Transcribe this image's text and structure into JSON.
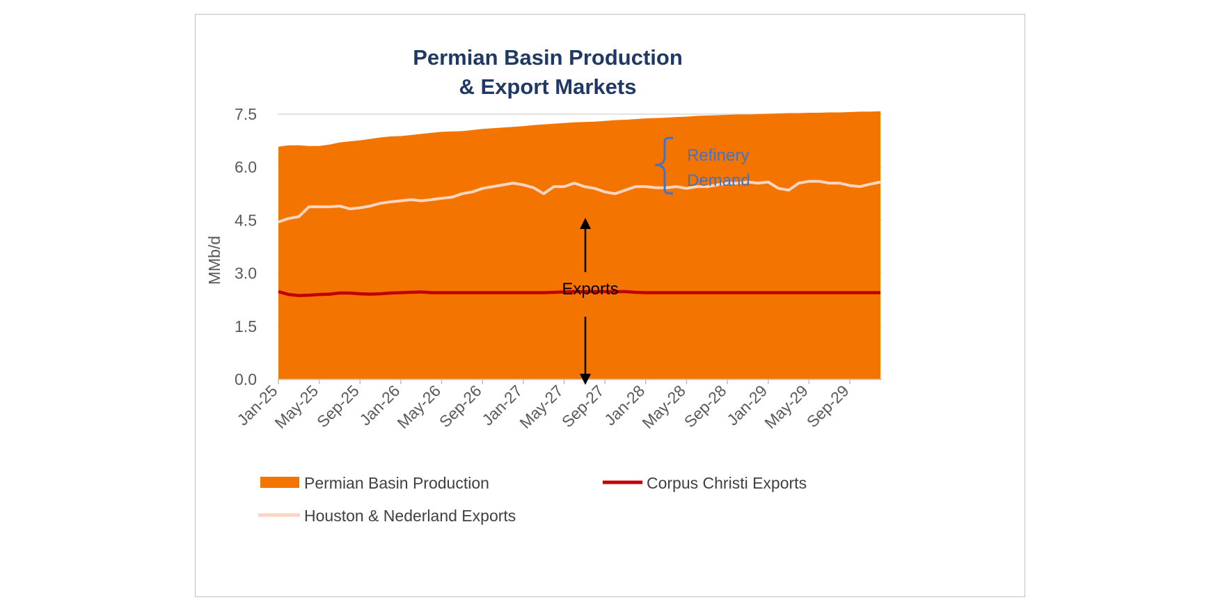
{
  "chart_data": {
    "type": "area",
    "title": [
      "Permian Basin Production",
      "& Export Markets"
    ],
    "ylabel": "MMb/d",
    "ylim": [
      0,
      7.5
    ],
    "yticks": [
      "0.0",
      "1.5",
      "3.0",
      "4.5",
      "6.0",
      "7.5"
    ],
    "x": [
      "Jan-25",
      "Feb-25",
      "Mar-25",
      "Apr-25",
      "May-25",
      "Jun-25",
      "Jul-25",
      "Aug-25",
      "Sep-25",
      "Oct-25",
      "Nov-25",
      "Dec-25",
      "Jan-26",
      "Feb-26",
      "Mar-26",
      "Apr-26",
      "May-26",
      "Jun-26",
      "Jul-26",
      "Aug-26",
      "Sep-26",
      "Oct-26",
      "Nov-26",
      "Dec-26",
      "Jan-27",
      "Feb-27",
      "Mar-27",
      "Apr-27",
      "May-27",
      "Jun-27",
      "Jul-27",
      "Aug-27",
      "Sep-27",
      "Oct-27",
      "Nov-27",
      "Dec-27",
      "Jan-28",
      "Feb-28",
      "Mar-28",
      "Apr-28",
      "May-28",
      "Jun-28",
      "Jul-28",
      "Aug-28",
      "Sep-28",
      "Oct-28",
      "Nov-28",
      "Dec-28",
      "Jan-29",
      "Feb-29",
      "Mar-29",
      "Apr-29",
      "May-29",
      "Jun-29",
      "Jul-29",
      "Aug-29",
      "Sep-29",
      "Oct-29",
      "Nov-29",
      "Dec-29"
    ],
    "xtick_labels": [
      "Jan-25",
      "May-25",
      "Sep-25",
      "Jan-26",
      "May-26",
      "Sep-26",
      "Jan-27",
      "May-27",
      "Sep-27",
      "Jan-28",
      "May-28",
      "Sep-28",
      "Jan-29",
      "May-29",
      "Sep-29"
    ],
    "grid": true,
    "legend_position": "bottom",
    "series": [
      {
        "name": "Permian Basin Production",
        "kind": "area",
        "color": "#f47400",
        "values": [
          6.58,
          6.62,
          6.62,
          6.6,
          6.6,
          6.64,
          6.7,
          6.73,
          6.76,
          6.8,
          6.84,
          6.87,
          6.88,
          6.91,
          6.94,
          6.97,
          7.0,
          7.01,
          7.02,
          7.05,
          7.08,
          7.1,
          7.12,
          7.14,
          7.16,
          7.19,
          7.21,
          7.23,
          7.25,
          7.27,
          7.28,
          7.29,
          7.31,
          7.33,
          7.34,
          7.36,
          7.38,
          7.39,
          7.4,
          7.42,
          7.43,
          7.45,
          7.46,
          7.47,
          7.48,
          7.49,
          7.49,
          7.5,
          7.51,
          7.52,
          7.53,
          7.53,
          7.54,
          7.54,
          7.55,
          7.55,
          7.56,
          7.57,
          7.57,
          7.58
        ]
      },
      {
        "name": "Corpus Christi Exports",
        "kind": "line",
        "color": "#c00000",
        "values": [
          2.48,
          2.4,
          2.37,
          2.38,
          2.4,
          2.41,
          2.44,
          2.44,
          2.42,
          2.41,
          2.42,
          2.44,
          2.45,
          2.46,
          2.47,
          2.45,
          2.45,
          2.45,
          2.45,
          2.45,
          2.45,
          2.45,
          2.45,
          2.45,
          2.45,
          2.45,
          2.45,
          2.46,
          2.47,
          2.48,
          2.48,
          2.48,
          2.48,
          2.48,
          2.48,
          2.46,
          2.45,
          2.45,
          2.45,
          2.45,
          2.45,
          2.45,
          2.45,
          2.45,
          2.45,
          2.45,
          2.45,
          2.45,
          2.45,
          2.45,
          2.45,
          2.45,
          2.45,
          2.45,
          2.45,
          2.45,
          2.45,
          2.45,
          2.45,
          2.45
        ]
      },
      {
        "name": "Houston & Nederland Exports",
        "kind": "line",
        "color": "#fbd5bf",
        "values": [
          4.45,
          4.55,
          4.6,
          4.88,
          4.88,
          4.88,
          4.9,
          4.82,
          4.85,
          4.9,
          4.98,
          5.02,
          5.05,
          5.08,
          5.05,
          5.08,
          5.12,
          5.15,
          5.25,
          5.3,
          5.4,
          5.45,
          5.5,
          5.55,
          5.5,
          5.42,
          5.25,
          5.45,
          5.45,
          5.55,
          5.45,
          5.4,
          5.3,
          5.25,
          5.35,
          5.45,
          5.45,
          5.42,
          5.42,
          5.45,
          5.4,
          5.45,
          5.45,
          5.5,
          5.55,
          5.55,
          5.58,
          5.55,
          5.58,
          5.4,
          5.35,
          5.55,
          5.6,
          5.6,
          5.55,
          5.55,
          5.48,
          5.45,
          5.52,
          5.58
        ]
      }
    ],
    "annotations": [
      {
        "text_lines": [
          "Refinery",
          "Demand"
        ],
        "color": "#4472c4"
      },
      {
        "text": "Exports",
        "color": "#000000"
      }
    ]
  }
}
